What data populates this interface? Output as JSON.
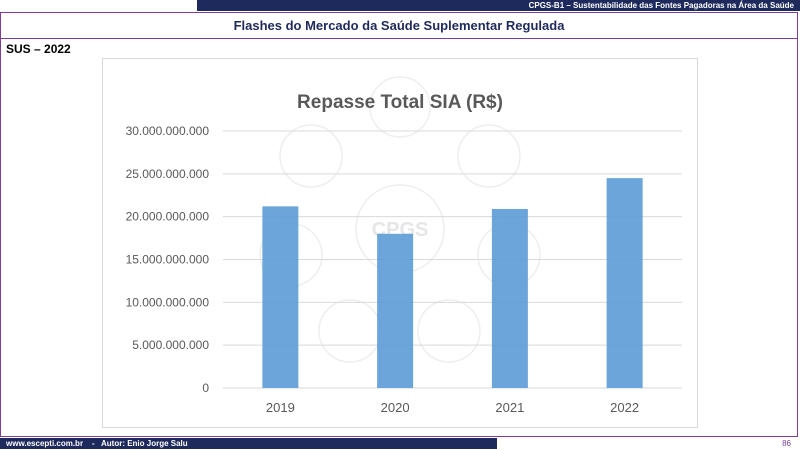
{
  "header": {
    "top_bar_text": "CPGS-B1 – Sustentabilidade  das Fontes Pagadoras na Área da Saúde",
    "title": "Flashes do Mercado da Saúde Suplementar Regulada"
  },
  "section_label": "SUS – 2022",
  "watermark": {
    "text": "CPGS"
  },
  "footer": {
    "text": "www.escepti.com.br    -   Autor: Enio Jorge Salu",
    "page_number": "86"
  },
  "colors": {
    "navy": "#1f2a5c",
    "purple_frame": "#7b3f94",
    "bar": "#5b9bd5"
  },
  "chart_data": {
    "type": "bar",
    "title": "Repasse Total SIA (R$)",
    "categories": [
      "2019",
      "2020",
      "2021",
      "2022"
    ],
    "values": [
      21200000000,
      18000000000,
      20900000000,
      24500000000
    ],
    "ylim": [
      0,
      30000000000
    ],
    "yticks": [
      "0",
      "5.000.000.000",
      "10.000.000.000",
      "15.000.000.000",
      "20.000.000.000",
      "25.000.000.000",
      "30.000.000.000"
    ],
    "xlabel": "",
    "ylabel": "",
    "grid": true,
    "legend": "none"
  }
}
